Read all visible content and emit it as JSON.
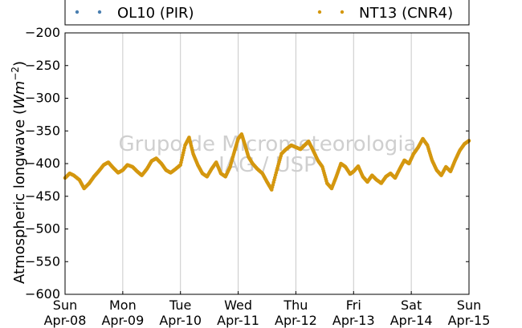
{
  "chart_data": {
    "type": "scatter",
    "title": "",
    "xlabel": "",
    "ylabel": "Atmospheric longwave (Wm^-2)",
    "ylabel_text": "Atmospheric longwave (",
    "ylabel_unit_base": "Wm",
    "ylabel_unit_exp": "−2",
    "ylabel_close": ")",
    "ylim": [
      -600,
      -200
    ],
    "yticks": [
      -200,
      -250,
      -300,
      -350,
      -400,
      -450,
      -500,
      -550,
      -600
    ],
    "ytick_labels": [
      "−200",
      "−250",
      "−300",
      "−350",
      "−400",
      "−450",
      "−500",
      "−550",
      "−600"
    ],
    "xlim": [
      "2012-04-08",
      "2012-04-15"
    ],
    "xticks": [
      {
        "day": "Sun",
        "date": "Apr-08"
      },
      {
        "day": "Mon",
        "date": "Apr-09"
      },
      {
        "day": "Tue",
        "date": "Apr-10"
      },
      {
        "day": "Wed",
        "date": "Apr-11"
      },
      {
        "day": "Thu",
        "date": "Apr-12"
      },
      {
        "day": "Fri",
        "date": "Apr-13"
      },
      {
        "day": "Sat",
        "date": "Apr-14"
      },
      {
        "day": "Sun",
        "date": "Apr-15"
      }
    ],
    "grid": "vertical",
    "legend_position": "top",
    "watermark": [
      "Grupo de Micrometeorologia",
      "IAG / USP"
    ],
    "series": [
      {
        "name": "OL10 (PIR)",
        "color": "#4a7fb0",
        "points": []
      },
      {
        "name": "NT13 (CNR4)",
        "color": "#d4970f",
        "points": [
          [
            0.0,
            -422
          ],
          [
            0.08,
            -415
          ],
          [
            0.15,
            -418
          ],
          [
            0.25,
            -425
          ],
          [
            0.33,
            -438
          ],
          [
            0.42,
            -430
          ],
          [
            0.5,
            -420
          ],
          [
            0.58,
            -412
          ],
          [
            0.67,
            -402
          ],
          [
            0.75,
            -398
          ],
          [
            0.83,
            -406
          ],
          [
            0.92,
            -414
          ],
          [
            1.0,
            -410
          ],
          [
            1.08,
            -402
          ],
          [
            1.17,
            -405
          ],
          [
            1.25,
            -412
          ],
          [
            1.33,
            -418
          ],
          [
            1.42,
            -408
          ],
          [
            1.5,
            -396
          ],
          [
            1.58,
            -392
          ],
          [
            1.67,
            -400
          ],
          [
            1.75,
            -410
          ],
          [
            1.83,
            -414
          ],
          [
            1.92,
            -408
          ],
          [
            2.0,
            -402
          ],
          [
            2.08,
            -372
          ],
          [
            2.15,
            -360
          ],
          [
            2.22,
            -385
          ],
          [
            2.3,
            -402
          ],
          [
            2.38,
            -415
          ],
          [
            2.46,
            -420
          ],
          [
            2.54,
            -408
          ],
          [
            2.62,
            -398
          ],
          [
            2.7,
            -415
          ],
          [
            2.78,
            -420
          ],
          [
            2.86,
            -405
          ],
          [
            2.94,
            -380
          ],
          [
            3.0,
            -362
          ],
          [
            3.06,
            -355
          ],
          [
            3.12,
            -372
          ],
          [
            3.18,
            -390
          ],
          [
            3.25,
            -400
          ],
          [
            3.33,
            -408
          ],
          [
            3.42,
            -415
          ],
          [
            3.5,
            -428
          ],
          [
            3.58,
            -440
          ],
          [
            3.67,
            -410
          ],
          [
            3.75,
            -385
          ],
          [
            3.83,
            -378
          ],
          [
            3.92,
            -372
          ],
          [
            4.0,
            -375
          ],
          [
            4.08,
            -378
          ],
          [
            4.15,
            -372
          ],
          [
            4.22,
            -366
          ],
          [
            4.3,
            -380
          ],
          [
            4.38,
            -395
          ],
          [
            4.46,
            -405
          ],
          [
            4.54,
            -430
          ],
          [
            4.62,
            -438
          ],
          [
            4.7,
            -420
          ],
          [
            4.78,
            -400
          ],
          [
            4.86,
            -405
          ],
          [
            4.94,
            -416
          ],
          [
            5.0,
            -412
          ],
          [
            5.08,
            -404
          ],
          [
            5.16,
            -420
          ],
          [
            5.24,
            -428
          ],
          [
            5.32,
            -418
          ],
          [
            5.4,
            -425
          ],
          [
            5.48,
            -430
          ],
          [
            5.56,
            -420
          ],
          [
            5.64,
            -415
          ],
          [
            5.72,
            -422
          ],
          [
            5.8,
            -408
          ],
          [
            5.88,
            -395
          ],
          [
            5.96,
            -400
          ],
          [
            6.04,
            -385
          ],
          [
            6.12,
            -375
          ],
          [
            6.2,
            -362
          ],
          [
            6.28,
            -372
          ],
          [
            6.36,
            -395
          ],
          [
            6.44,
            -410
          ],
          [
            6.52,
            -418
          ],
          [
            6.6,
            -405
          ],
          [
            6.68,
            -412
          ],
          [
            6.76,
            -395
          ],
          [
            6.84,
            -380
          ],
          [
            6.92,
            -370
          ],
          [
            7.0,
            -365
          ]
        ]
      }
    ]
  }
}
